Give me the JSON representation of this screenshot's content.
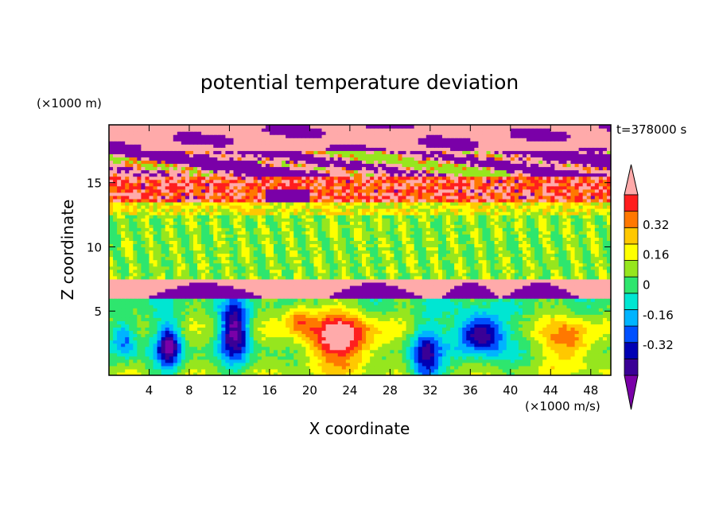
{
  "chart_data": {
    "type": "heatmap",
    "title": "potential temperature deviation",
    "xlabel": "X coordinate",
    "ylabel": "Z coordinate",
    "x_unit": "(×1000 m/s)",
    "y_unit": "(×1000 m)",
    "time_label": "t=378000 s",
    "xlim": [
      0,
      50
    ],
    "ylim": [
      0,
      19.5
    ],
    "x_ticks": [
      4,
      8,
      12,
      16,
      20,
      24,
      28,
      32,
      36,
      40,
      44,
      48
    ],
    "y_ticks": [
      5,
      10,
      15
    ],
    "colorbar": {
      "levels": [
        -0.48,
        -0.4,
        -0.32,
        -0.24,
        -0.16,
        -0.08,
        0,
        0.08,
        0.16,
        0.24,
        0.32,
        0.4,
        0.48
      ],
      "tick_labels": [
        "0.32",
        "0.16",
        "0",
        "-0.16",
        "-0.32"
      ],
      "tick_values": [
        0.32,
        0.16,
        0,
        -0.16,
        -0.32
      ],
      "colors": [
        "#7a00a8",
        "#3a0096",
        "#0000b4",
        "#0050ff",
        "#00b4ff",
        "#00e6d2",
        "#2ee66e",
        "#96e61e",
        "#ffff00",
        "#ffc800",
        "#ff7800",
        "#ff1e1e",
        "#ffaaaa"
      ],
      "extend": "both"
    },
    "layers": [
      {
        "z_range": [
          17.5,
          19.5
        ],
        "dominant_value": 0.5,
        "mixed_with": -0.5
      },
      {
        "z_range": [
          15.5,
          17.5
        ],
        "dominant_value": -0.5,
        "mixed_with": 0.5
      },
      {
        "z_range": [
          13.5,
          15.5
        ],
        "dominant_value": 0.35
      },
      {
        "z_range": [
          12.5,
          13.5
        ],
        "dominant_value": 0.1
      },
      {
        "z_range": [
          7.5,
          12.5
        ],
        "dominant_value": 0.0
      },
      {
        "z_range": [
          6.0,
          7.3
        ],
        "dominant_value": 0.5,
        "mixed_with": -0.5
      },
      {
        "z_range": [
          0,
          6.0
        ],
        "dominant_value": 0.0,
        "mixed_with": [
          -0.5,
          0.4
        ]
      }
    ]
  }
}
